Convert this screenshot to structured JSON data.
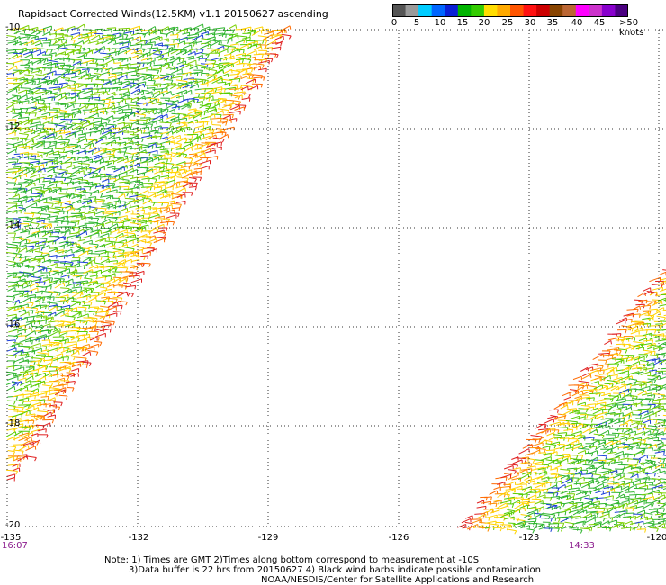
{
  "title": "Rapidsact Corrected Winds(12.5KM) v1.1 20150627 ascending",
  "legend": {
    "colors": [
      "#555555",
      "#9a9a9a",
      "#00ccff",
      "#0066ff",
      "#0a1fd6",
      "#00b400",
      "#33cc00",
      "#ffdd00",
      "#ffaa00",
      "#ff5500",
      "#ff1111",
      "#cc0000",
      "#884400",
      "#bb6633",
      "#ff00ff",
      "#cc33cc",
      "#8800cc",
      "#4a0080"
    ],
    "labels": [
      "0",
      "5",
      "10",
      "15",
      "20",
      "25",
      "30",
      "35",
      "40",
      "45",
      ">50 knots"
    ]
  },
  "axes": {
    "y_labels": [
      "-10",
      "-12",
      "-14",
      "-16",
      "-18",
      "-20"
    ],
    "x_labels": [
      "-135",
      "-132",
      "-129",
      "-126",
      "-123",
      "-120"
    ]
  },
  "times": {
    "left": "16:07",
    "right": "14:33"
  },
  "notes": {
    "line1": "Note: 1) Times are GMT 2)Times along bottom correspond to measurement at -10S",
    "line2": "3)Data buffer is 22 hrs from 20150627 4) Black wind barbs indicate possible contamination",
    "line3": "NOAA/NESDIS/Center for Satellite Applications and Research"
  }
}
